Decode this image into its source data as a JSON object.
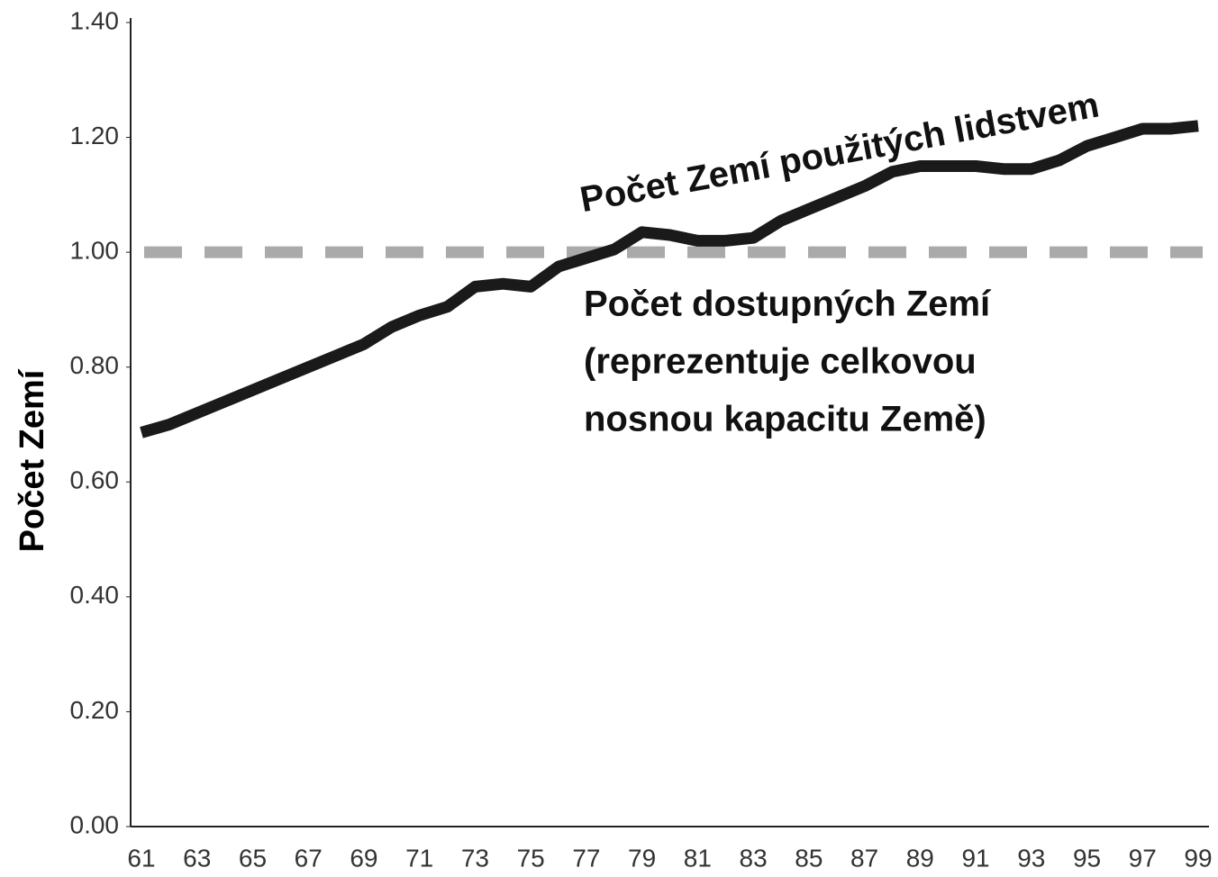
{
  "chart_data": {
    "type": "line",
    "y_label": "Počet Zemí",
    "categories": [
      "61",
      null,
      "63",
      null,
      "65",
      null,
      "67",
      null,
      "69",
      null,
      "71",
      null,
      "73",
      null,
      "75",
      null,
      "77",
      null,
      "79",
      null,
      "81",
      null,
      "83",
      null,
      "85",
      null,
      "87",
      null,
      "89",
      null,
      "91",
      null,
      "93",
      null,
      "95",
      null,
      "97",
      null,
      "99"
    ],
    "series": [
      {
        "name": "Počet Zemí použitých lidstvem",
        "color": "#1a1a1a",
        "values": [
          0.686,
          0.7,
          0.72,
          0.74,
          0.76,
          0.78,
          0.8,
          0.82,
          0.84,
          0.87,
          0.89,
          0.905,
          0.94,
          0.945,
          0.94,
          0.975,
          0.99,
          1.005,
          1.035,
          1.03,
          1.02,
          1.02,
          1.025,
          1.055,
          1.075,
          1.095,
          1.115,
          1.14,
          1.15,
          1.15,
          1.15,
          1.145,
          1.145,
          1.16,
          1.185,
          1.2,
          1.215,
          1.215,
          1.22
        ]
      }
    ],
    "reference_line": {
      "value": 1.0,
      "color": "#aaaaaa",
      "label_lines": [
        "Počet dostupných Zemí",
        "(reprezentuje celkovou",
        "nosnou kapacitu Země)"
      ]
    },
    "ylim": [
      0,
      1.4
    ],
    "yticks": [
      {
        "value": 0,
        "label": "0.00"
      },
      {
        "value": 0.2,
        "label": "0.20"
      },
      {
        "value": 0.4,
        "label": "0.40"
      },
      {
        "value": 0.6,
        "label": "0.60"
      },
      {
        "value": 0.8,
        "label": "0.80"
      },
      {
        "value": 1.0,
        "label": "1.00"
      },
      {
        "value": 1.2,
        "label": "1.20"
      },
      {
        "value": 1.4,
        "label": "1.40"
      }
    ]
  }
}
